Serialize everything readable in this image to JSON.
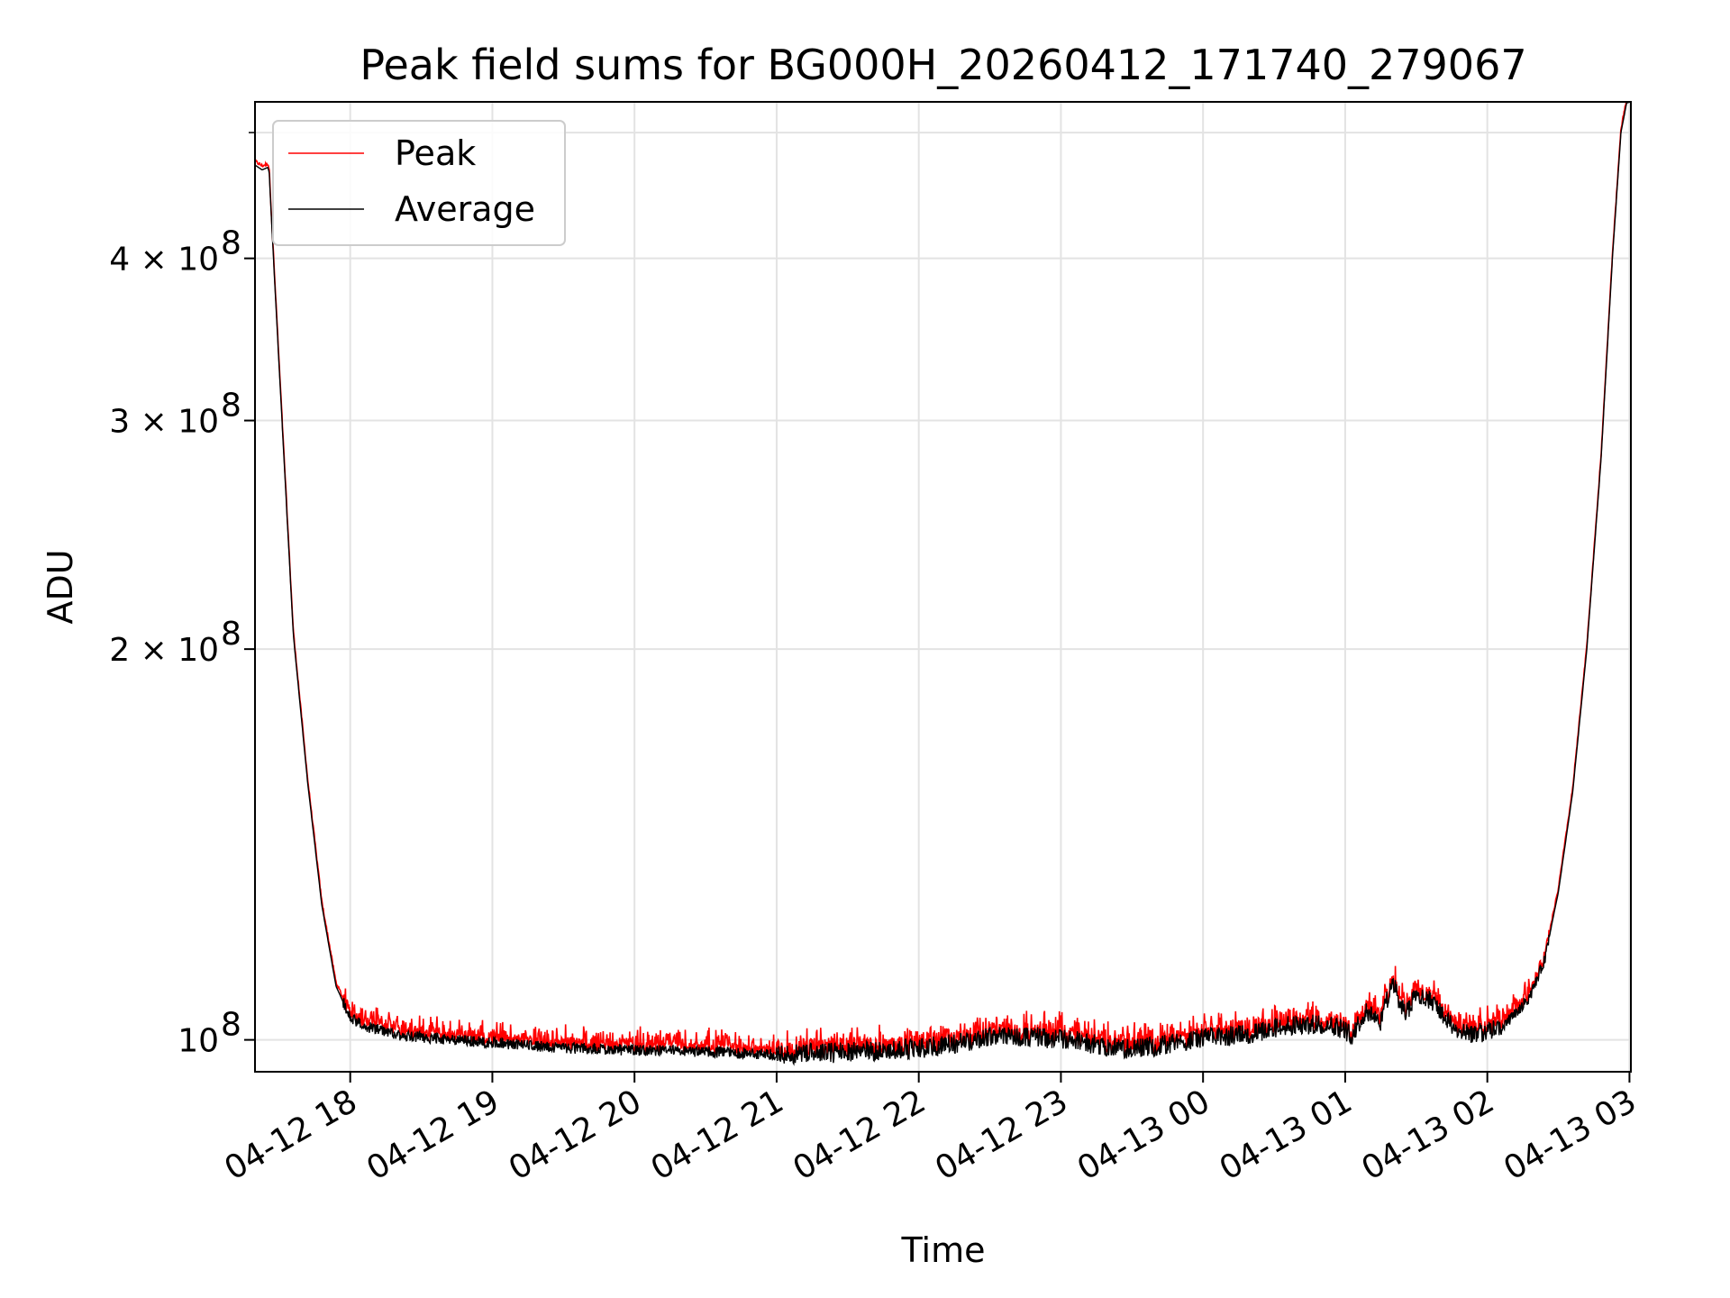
{
  "chart_data": {
    "type": "line",
    "title": "Peak field sums for BG000H_20260412_171740_279067",
    "xlabel": "Time",
    "ylabel": "ADU",
    "yscale": "log",
    "xlim_hours_from_0412_1800": [
      -0.67,
      9.01
    ],
    "ylim": [
      94500000,
      528000000
    ],
    "grid": true,
    "legend_position": "upper-left",
    "x_ticks": [
      {
        "hour": 0,
        "label": "04-12 18"
      },
      {
        "hour": 1,
        "label": "04-12 19"
      },
      {
        "hour": 2,
        "label": "04-12 20"
      },
      {
        "hour": 3,
        "label": "04-12 21"
      },
      {
        "hour": 4,
        "label": "04-12 22"
      },
      {
        "hour": 5,
        "label": "04-12 23"
      },
      {
        "hour": 6,
        "label": "04-13 00"
      },
      {
        "hour": 7,
        "label": "04-13 01"
      },
      {
        "hour": 8,
        "label": "04-13 02"
      },
      {
        "hour": 9,
        "label": "04-13 03"
      }
    ],
    "y_ticks": [
      {
        "value": 100000000,
        "label": "10",
        "exp": "8"
      },
      {
        "value": 200000000,
        "label": "2 × 10",
        "exp": "8"
      },
      {
        "value": 300000000,
        "label": "3 × 10",
        "exp": "8"
      },
      {
        "value": 400000000,
        "label": "4 × 10",
        "exp": "8"
      }
    ],
    "y_minor_ticks": [
      500000000
    ],
    "series": [
      {
        "name": "Peak",
        "color": "#ff0000"
      },
      {
        "name": "Average",
        "color": "#000000"
      }
    ],
    "average_profile": [
      [
        -0.67,
        472000000
      ],
      [
        -0.62,
        468000000
      ],
      [
        -0.58,
        470000000
      ],
      [
        -0.57,
        466000000
      ],
      [
        -0.55,
        420000000
      ],
      [
        -0.5,
        330000000
      ],
      [
        -0.45,
        260000000
      ],
      [
        -0.4,
        205000000
      ],
      [
        -0.3,
        158000000
      ],
      [
        -0.2,
        127000000
      ],
      [
        -0.1,
        110000000
      ],
      [
        0.0,
        104000000
      ],
      [
        0.1,
        102500000
      ],
      [
        0.3,
        101000000
      ],
      [
        0.5,
        100500000
      ],
      [
        1.0,
        99500000
      ],
      [
        1.5,
        98600000
      ],
      [
        2.0,
        98200000
      ],
      [
        2.5,
        97900000
      ],
      [
        3.0,
        97500000
      ],
      [
        3.5,
        97800000
      ],
      [
        4.0,
        98500000
      ],
      [
        4.3,
        99500000
      ],
      [
        4.5,
        100700000
      ],
      [
        4.8,
        100500000
      ],
      [
        5.0,
        100200000
      ],
      [
        5.3,
        99000000
      ],
      [
        5.5,
        98300000
      ],
      [
        5.8,
        99400000
      ],
      [
        6.0,
        100300000
      ],
      [
        6.3,
        101000000
      ],
      [
        6.6,
        102500000
      ],
      [
        6.9,
        103000000
      ],
      [
        7.05,
        101000000
      ],
      [
        7.15,
        105500000
      ],
      [
        7.25,
        103000000
      ],
      [
        7.33,
        111000000
      ],
      [
        7.42,
        104500000
      ],
      [
        7.5,
        108500000
      ],
      [
        7.6,
        107500000
      ],
      [
        7.7,
        104000000
      ],
      [
        7.8,
        101000000
      ],
      [
        8.0,
        101500000
      ],
      [
        8.1,
        102000000
      ],
      [
        8.3,
        108000000
      ],
      [
        8.4,
        115000000
      ],
      [
        8.5,
        130000000
      ],
      [
        8.6,
        155000000
      ],
      [
        8.7,
        200000000
      ],
      [
        8.8,
        280000000
      ],
      [
        8.88,
        400000000
      ],
      [
        8.94,
        500000000
      ],
      [
        8.98,
        527000000
      ],
      [
        9.01,
        528000000
      ]
    ]
  }
}
